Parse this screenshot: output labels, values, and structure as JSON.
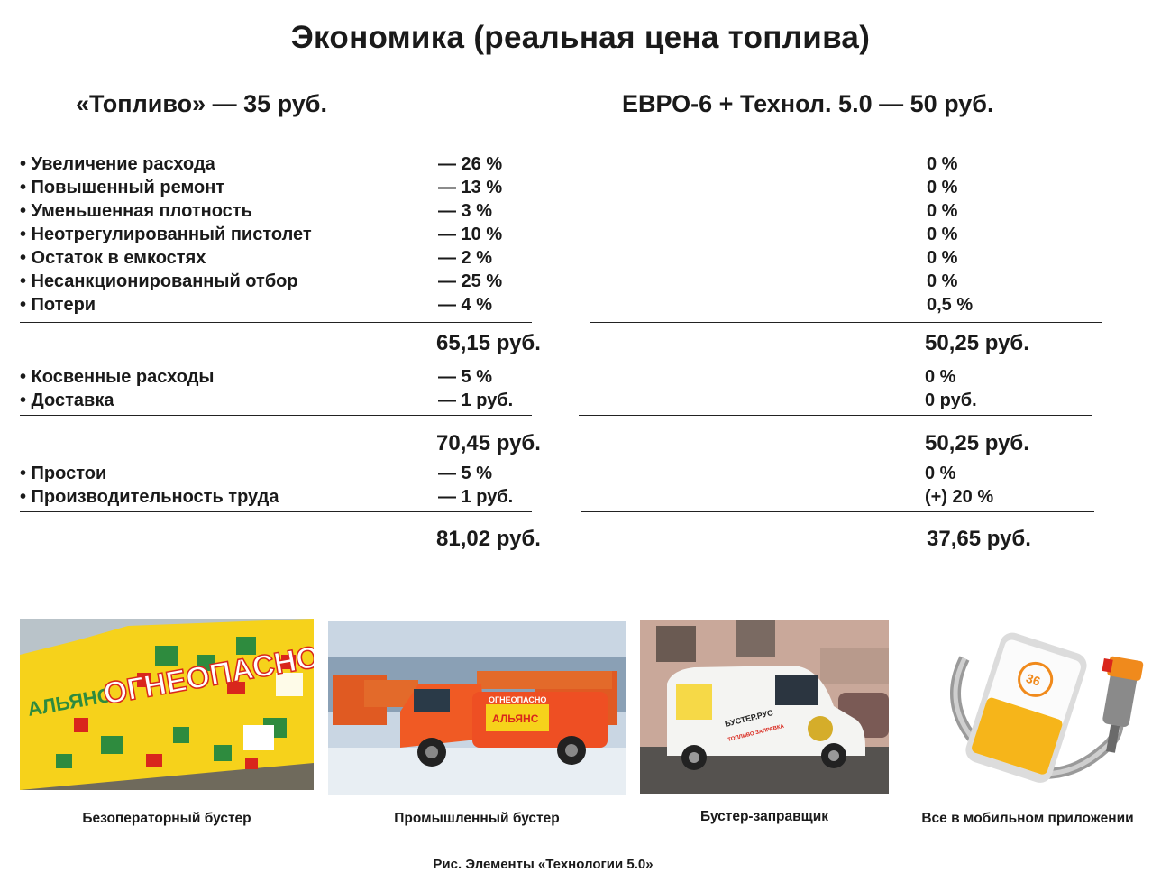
{
  "title": "Экономика (реальная цена топлива)",
  "columns": {
    "left_header": "«Топливо» — 35 руб.",
    "right_header": "ЕВРО-6 + Технол. 5.0 — 50 руб."
  },
  "groups": [
    {
      "items": [
        {
          "label": "• Увеличение расхода",
          "left": "— 26 %",
          "right": "0 %"
        },
        {
          "label": "• Повышенный ремонт",
          "left": "— 13 %",
          "right": "0 %"
        },
        {
          "label": "• Уменьшенная плотность",
          "left": "— 3 %",
          "right": "0 %"
        },
        {
          "label": "• Неотрегулированный пистолет",
          "left": "— 10 %",
          "right": "0 %"
        },
        {
          "label": "• Остаток в емкостях",
          "left": "— 2 %",
          "right": "0 %"
        },
        {
          "label": "• Несанкционированный отбор",
          "left": "— 25 %",
          "right": "0 %"
        },
        {
          "label": "• Потери",
          "left": "— 4 %",
          "right": "0,5 %"
        }
      ],
      "total_left": "65,15 руб.",
      "total_right": "50,25 руб."
    },
    {
      "items": [
        {
          "label": "• Косвенные расходы",
          "left": "— 5 %",
          "right": "0 %"
        },
        {
          "label": "• Доставка",
          "left": "— 1 руб.",
          "right": "0 руб."
        }
      ],
      "total_left": "70,45 руб.",
      "total_right": "50,25 руб."
    },
    {
      "items": [
        {
          "label": "• Простои",
          "left": "— 5 %",
          "right": "0 %"
        },
        {
          "label": "• Производительность труда",
          "left": "— 1 руб.",
          "right": "(+) 20 %"
        }
      ],
      "total_left": "81,02 руб.",
      "total_right": "37,65 руб."
    }
  ],
  "photos": [
    {
      "caption": "Безоператорный бустер",
      "logo_text": "АЛЬЯНС",
      "body_text": "ОГНЕОПАСНО"
    },
    {
      "caption": "Промышленный бустер",
      "logo_text": "АЛЬЯНС",
      "body_text": "ОГНЕОПАСНО"
    },
    {
      "caption": "Бустер-заправщик",
      "logo_text": "БУСТЕР.РУС",
      "body_text": "ТОПЛИВО ЗАПРАВКА"
    },
    {
      "caption": "Все в мобильном приложении",
      "screen_text": "36"
    }
  ],
  "figure_caption": "Рис. Элементы «Технологии 5.0»",
  "colors": {
    "yellow": "#f6d21b",
    "green": "#2e8b3e",
    "red": "#d9261c",
    "orange": "#f08a1c"
  }
}
